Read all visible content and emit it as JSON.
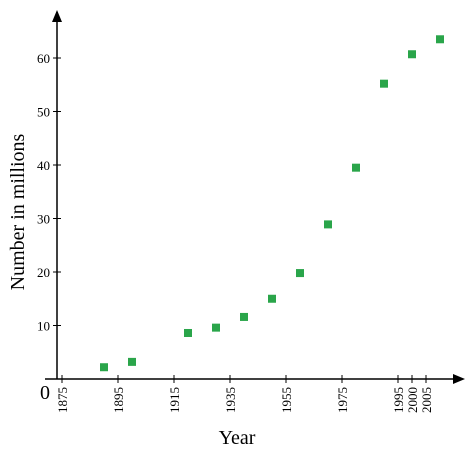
{
  "chart_data": {
    "type": "scatter",
    "xlabel": "Year",
    "ylabel": "Number in millions",
    "origin_label": "0",
    "x_ticks": [
      1875,
      1895,
      1915,
      1935,
      1955,
      1975,
      1995,
      2000,
      2005
    ],
    "y_ticks": [
      10,
      20,
      30,
      40,
      50,
      60
    ],
    "xlim": [
      1870,
      2010
    ],
    "ylim": [
      0,
      68
    ],
    "grid": false,
    "marker_color": "#2aa54a",
    "points": [
      {
        "x": 1890,
        "y": 2.2
      },
      {
        "x": 1900,
        "y": 3.2
      },
      {
        "x": 1920,
        "y": 8.6
      },
      {
        "x": 1930,
        "y": 9.6
      },
      {
        "x": 1940,
        "y": 11.6
      },
      {
        "x": 1950,
        "y": 15.0
      },
      {
        "x": 1960,
        "y": 19.8
      },
      {
        "x": 1970,
        "y": 28.9
      },
      {
        "x": 1980,
        "y": 39.5
      },
      {
        "x": 1990,
        "y": 55.2
      },
      {
        "x": 2000,
        "y": 60.7
      },
      {
        "x": 2010,
        "y": 63.5
      }
    ]
  }
}
